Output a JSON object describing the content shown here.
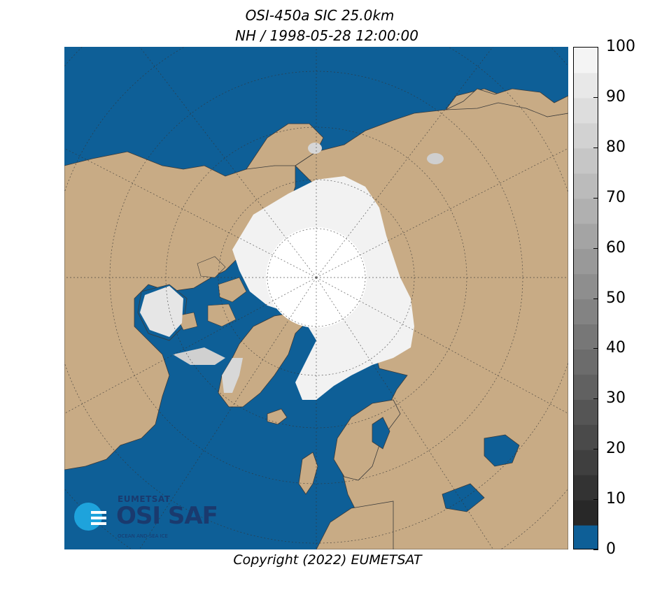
{
  "title": {
    "line1": "OSI-450a SIC 25.0km",
    "line2": "NH / 1998-05-28 12:00:00"
  },
  "map": {
    "projection": "north-polar-stereographic",
    "hemisphere": "NH",
    "colors": {
      "ocean": "#0e5f97",
      "land": "#c8ab85",
      "ice_full": "#ffffff",
      "graticule": "#333333"
    }
  },
  "logo": {
    "org": "EUMETSAT",
    "name": "OSI SAF",
    "tagline": "OCEAN AND SEA ICE",
    "color": "#1a3a6e",
    "icon_color": "#1ea3dc",
    "icon": "osisaf-logo-icon"
  },
  "colorbar": {
    "label_values": [
      "100",
      "90",
      "80",
      "70",
      "60",
      "50",
      "40",
      "30",
      "20",
      "10",
      "0"
    ],
    "min": 0,
    "max": 100,
    "step": 5,
    "bottom_color": "#0e5f97"
  },
  "copyright": "Copyright (2022)  EUMETSAT"
}
